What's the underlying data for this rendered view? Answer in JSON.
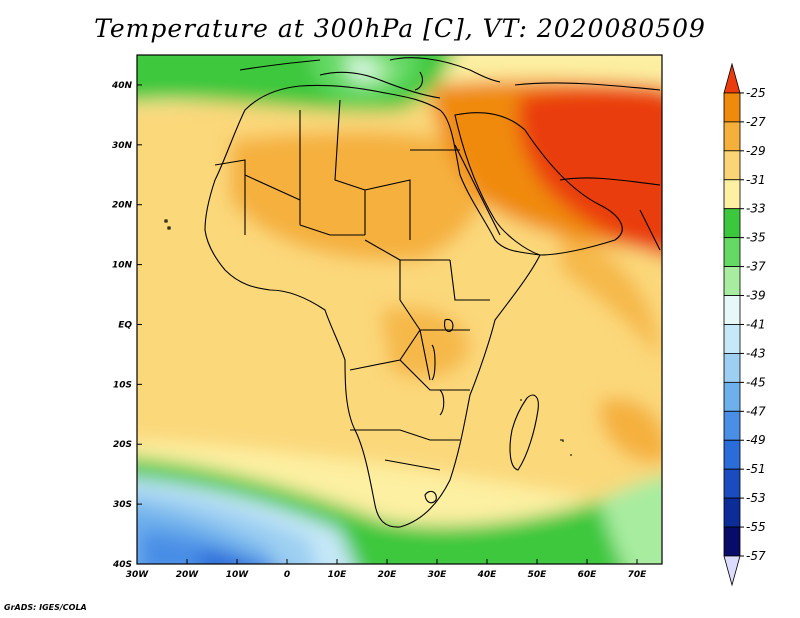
{
  "title": "Temperature at 300hPa [C], VT: 2020080509",
  "credit": "GrADS: IGES/COLA",
  "map": {
    "lon_range": [
      -30,
      75
    ],
    "lat_range": [
      -40,
      45
    ],
    "x_ticks": [
      "30W",
      "20W",
      "10W",
      "0",
      "10E",
      "20E",
      "30E",
      "40E",
      "50E",
      "60E",
      "70E"
    ],
    "y_ticks": [
      "40N",
      "30N",
      "20N",
      "10N",
      "EQ",
      "10S",
      "20S",
      "30S",
      "40S"
    ]
  },
  "colorbar": {
    "labels": [
      "-25",
      "-27",
      "-29",
      "-31",
      "-33",
      "-35",
      "-37",
      "-39",
      "-41",
      "-43",
      "-45",
      "-47",
      "-49",
      "-51",
      "-53",
      "-55",
      "-57"
    ],
    "colors": [
      "#ea3c0c",
      "#f08a0c",
      "#f5b03c",
      "#fbd575",
      "#fdf0a2",
      "#3cc83c",
      "#64d964",
      "#a8eca0",
      "#e8f8f8",
      "#c6e8f8",
      "#9ccff2",
      "#6eb0ec",
      "#4a8ee6",
      "#2a6cd8",
      "#1a4cc0",
      "#0c2c98",
      "#080c68"
    ]
  }
}
